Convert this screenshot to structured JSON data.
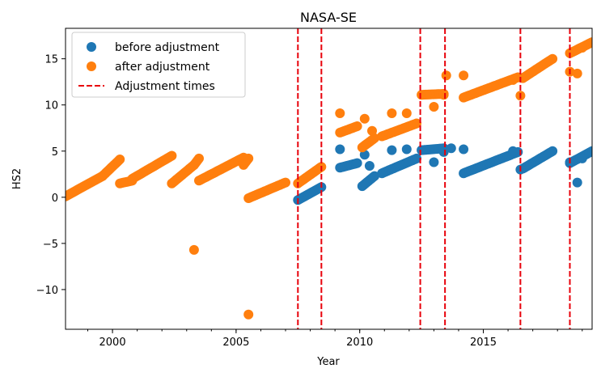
{
  "chart_data": {
    "type": "scatter",
    "title": "NASA-SE",
    "xlabel": "Year",
    "ylabel": "HS2",
    "xlim": [
      1998.1,
      2019.4
    ],
    "ylim": [
      -14.3,
      18.3
    ],
    "x_ticks": [
      2000,
      2005,
      2010,
      2015
    ],
    "x_tick_labels": [
      "2000",
      "2005",
      "2010",
      "2015"
    ],
    "y_ticks": [
      -10,
      -5,
      0,
      5,
      10,
      15
    ],
    "y_tick_labels": [
      "−10",
      "−5",
      "0",
      "5",
      "10",
      "15"
    ],
    "grid": false,
    "legend": {
      "placement": "top-left",
      "entries": [
        {
          "label": "before adjustment",
          "kind": "marker",
          "color": "#1f77b4"
        },
        {
          "label": "after adjustment",
          "kind": "marker",
          "color": "#ff7f0e"
        },
        {
          "label": "Adjustment times",
          "kind": "dashed-line",
          "color": "#e8000b"
        }
      ]
    },
    "adjustment_times": [
      2007.5,
      2008.45,
      2012.45,
      2013.45,
      2016.5,
      2018.5
    ],
    "series": [
      {
        "name": "before adjustment",
        "color": "#1f77b4",
        "segments": [
          {
            "x": [
              2007.5,
              2008.45
            ],
            "y": [
              -0.3,
              1.1
            ]
          },
          {
            "x": [
              2009.2,
              2009.9
            ],
            "y": [
              3.2,
              3.7
            ]
          },
          {
            "x": [
              2010.1,
              2010.6
            ],
            "y": [
              1.2,
              2.3
            ]
          },
          {
            "x": [
              2010.9,
              2012.3
            ],
            "y": [
              2.6,
              4.2
            ]
          },
          {
            "x": [
              2012.5,
              2013.4
            ],
            "y": [
              5.1,
              5.3
            ]
          },
          {
            "x": [
              2014.2,
              2016.4
            ],
            "y": [
              2.6,
              4.9
            ]
          },
          {
            "x": [
              2016.6,
              2017.8
            ],
            "y": [
              3.1,
              5.0
            ]
          },
          {
            "x": [
              2018.5,
              2019.4
            ],
            "y": [
              3.7,
              5.0
            ]
          }
        ],
        "points": [
          {
            "x": 2009.2,
            "y": 5.2
          },
          {
            "x": 2010.2,
            "y": 4.6
          },
          {
            "x": 2010.4,
            "y": 3.4
          },
          {
            "x": 2011.3,
            "y": 5.1
          },
          {
            "x": 2011.9,
            "y": 5.2
          },
          {
            "x": 2013.0,
            "y": 3.8
          },
          {
            "x": 2013.4,
            "y": 4.9
          },
          {
            "x": 2013.7,
            "y": 5.3
          },
          {
            "x": 2014.2,
            "y": 5.2
          },
          {
            "x": 2016.2,
            "y": 5.0
          },
          {
            "x": 2016.5,
            "y": 3.0
          },
          {
            "x": 2018.5,
            "y": 3.8
          },
          {
            "x": 2018.8,
            "y": 1.6
          },
          {
            "x": 2019.0,
            "y": 4.2
          }
        ]
      },
      {
        "name": "after adjustment",
        "color": "#ff7f0e",
        "segments": [
          {
            "x": [
              1998.1,
              1999.6
            ],
            "y": [
              0.1,
              2.3
            ]
          },
          {
            "x": [
              1999.6,
              2000.3
            ],
            "y": [
              2.3,
              4.1
            ]
          },
          {
            "x": [
              2000.3,
              2000.8
            ],
            "y": [
              1.5,
              1.8
            ]
          },
          {
            "x": [
              2000.8,
              2002.4
            ],
            "y": [
              2.0,
              4.5
            ]
          },
          {
            "x": [
              2002.4,
              2003.3
            ],
            "y": [
              1.5,
              3.5
            ]
          },
          {
            "x": [
              2003.3,
              2003.5
            ],
            "y": [
              3.5,
              4.2
            ]
          },
          {
            "x": [
              2003.5,
              2005.3
            ],
            "y": [
              1.8,
              4.3
            ]
          },
          {
            "x": [
              2005.3,
              2005.5
            ],
            "y": [
              3.5,
              4.2
            ]
          },
          {
            "x": [
              2005.5,
              2007.0
            ],
            "y": [
              -0.1,
              1.6
            ]
          },
          {
            "x": [
              2007.5,
              2008.45
            ],
            "y": [
              1.5,
              3.3
            ]
          },
          {
            "x": [
              2009.2,
              2009.9
            ],
            "y": [
              7.0,
              7.7
            ]
          },
          {
            "x": [
              2010.1,
              2010.6
            ],
            "y": [
              5.4,
              6.4
            ]
          },
          {
            "x": [
              2010.9,
              2012.3
            ],
            "y": [
              6.6,
              8.0
            ]
          },
          {
            "x": [
              2012.5,
              2013.4
            ],
            "y": [
              11.1,
              11.2
            ]
          },
          {
            "x": [
              2014.2,
              2016.4
            ],
            "y": [
              10.8,
              13.0
            ]
          },
          {
            "x": [
              2016.6,
              2017.8
            ],
            "y": [
              12.9,
              15.0
            ]
          },
          {
            "x": [
              2018.5,
              2019.4
            ],
            "y": [
              15.6,
              16.8
            ]
          }
        ],
        "points": [
          {
            "x": 2003.3,
            "y": -5.7
          },
          {
            "x": 2005.5,
            "y": -12.7
          },
          {
            "x": 2009.2,
            "y": 9.1
          },
          {
            "x": 2010.2,
            "y": 8.5
          },
          {
            "x": 2010.5,
            "y": 7.2
          },
          {
            "x": 2011.3,
            "y": 9.1
          },
          {
            "x": 2011.9,
            "y": 9.1
          },
          {
            "x": 2013.0,
            "y": 9.8
          },
          {
            "x": 2013.4,
            "y": 11.1
          },
          {
            "x": 2013.5,
            "y": 13.2
          },
          {
            "x": 2014.2,
            "y": 13.2
          },
          {
            "x": 2016.2,
            "y": 12.7
          },
          {
            "x": 2016.5,
            "y": 11.0
          },
          {
            "x": 2018.5,
            "y": 13.6
          },
          {
            "x": 2018.8,
            "y": 13.4
          },
          {
            "x": 2019.0,
            "y": 16.2
          }
        ]
      }
    ]
  }
}
